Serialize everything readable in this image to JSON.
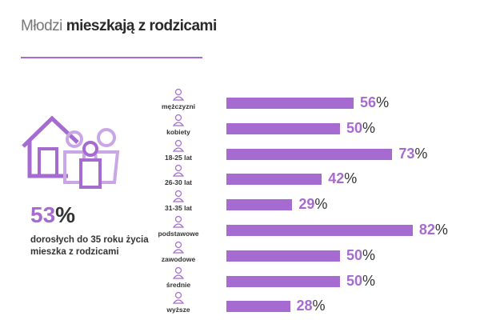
{
  "header": {
    "title_light": "Młodzi",
    "title_bold": "mieszkają z rodzicami"
  },
  "summary": {
    "value": "53",
    "unit": "%",
    "text": "dorosłych do 35 roku życia mieszka z rodzicami"
  },
  "colors": {
    "accent": "#a66bd0",
    "text": "#333333"
  },
  "chart_data": {
    "type": "bar",
    "orientation": "horizontal",
    "title": "Młodzi mieszkają z rodzicami",
    "categories": [
      "mężczyzni",
      "kobiety",
      "18-25 lat",
      "26-30 lat",
      "31-35 lat",
      "podstawowe",
      "zawodowe",
      "średnie",
      "wyższe"
    ],
    "icons": [
      "man-icon",
      "woman-icon",
      "person-icon",
      "person-icon",
      "person-icon",
      "shield-icon",
      "wrench-icon",
      "book-icon",
      "graduation-cap-icon"
    ],
    "values": [
      56,
      50,
      73,
      42,
      29,
      82,
      50,
      50,
      28
    ],
    "unit": "%",
    "xlim": [
      0,
      100
    ]
  }
}
